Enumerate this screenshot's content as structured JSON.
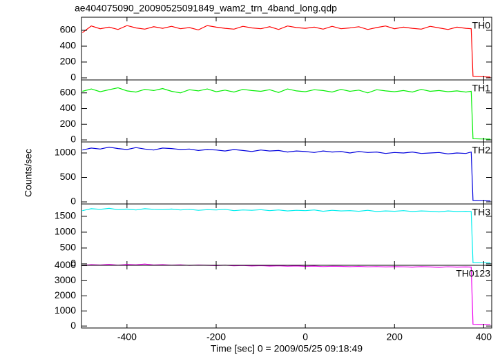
{
  "chart_data": [
    {
      "type": "line",
      "title": "ae404075090_20090525091849_wam2_trn_4band_long.qdp",
      "x": [
        -500,
        -480,
        -460,
        -440,
        -420,
        -400,
        -380,
        -360,
        -340,
        -320,
        -300,
        -280,
        -260,
        -240,
        -220,
        -200,
        -180,
        -160,
        -140,
        -120,
        -100,
        -80,
        -60,
        -40,
        -20,
        0,
        20,
        40,
        60,
        80,
        100,
        120,
        140,
        160,
        180,
        200,
        220,
        240,
        260,
        280,
        300,
        320,
        340,
        360,
        372,
        376,
        395,
        415
      ],
      "series": [
        {
          "name": "TH0",
          "color": "#ff0000",
          "values": [
            570,
            655,
            620,
            640,
            610,
            660,
            630,
            615,
            645,
            625,
            650,
            620,
            635,
            605,
            660,
            640,
            625,
            615,
            650,
            630,
            620,
            645,
            610,
            655,
            635,
            625,
            640,
            615,
            650,
            620,
            630,
            645,
            610,
            635,
            655,
            620,
            640,
            625,
            615,
            650,
            630,
            610,
            640,
            625,
            620,
            20,
            15,
            10
          ]
        }
      ],
      "xlim": [
        -502,
        418
      ],
      "xticks": [
        -400,
        -200,
        0,
        200,
        400
      ],
      "ylim": [
        -26,
        765
      ],
      "yticks": [
        0,
        200,
        400,
        600
      ]
    },
    {
      "type": "line",
      "x": [
        -500,
        -480,
        -460,
        -440,
        -420,
        -400,
        -380,
        -360,
        -340,
        -320,
        -300,
        -280,
        -260,
        -240,
        -220,
        -200,
        -180,
        -160,
        -140,
        -120,
        -100,
        -80,
        -60,
        -40,
        -20,
        0,
        20,
        40,
        60,
        80,
        100,
        120,
        140,
        160,
        180,
        200,
        220,
        240,
        260,
        280,
        300,
        320,
        340,
        360,
        372,
        376,
        395,
        415
      ],
      "series": [
        {
          "name": "TH1",
          "color": "#00ee00",
          "values": [
            620,
            650,
            615,
            640,
            665,
            625,
            610,
            645,
            630,
            655,
            620,
            600,
            640,
            625,
            650,
            615,
            635,
            610,
            645,
            630,
            620,
            640,
            605,
            650,
            625,
            615,
            640,
            630,
            610,
            645,
            620,
            635,
            600,
            640,
            625,
            615,
            630,
            610,
            645,
            620,
            630,
            615,
            625,
            610,
            620,
            15,
            12,
            10
          ]
        }
      ],
      "xlim": [
        -502,
        418
      ],
      "xticks": [
        -400,
        -200,
        0,
        200,
        400
      ],
      "ylim": [
        -26,
        765
      ],
      "yticks": [
        0,
        200,
        400,
        600
      ]
    },
    {
      "type": "line",
      "ylabel": "Counts/sec",
      "x": [
        -500,
        -480,
        -460,
        -440,
        -420,
        -400,
        -380,
        -360,
        -340,
        -320,
        -300,
        -280,
        -260,
        -240,
        -220,
        -200,
        -180,
        -160,
        -140,
        -120,
        -100,
        -80,
        -60,
        -40,
        -20,
        0,
        20,
        40,
        60,
        80,
        100,
        120,
        140,
        160,
        180,
        200,
        220,
        240,
        260,
        280,
        300,
        320,
        340,
        360,
        372,
        376,
        395,
        415
      ],
      "series": [
        {
          "name": "TH2",
          "color": "#0000dd",
          "values": [
            1060,
            1100,
            1080,
            1120,
            1090,
            1070,
            1110,
            1080,
            1060,
            1100,
            1090,
            1070,
            1080,
            1050,
            1070,
            1060,
            1040,
            1070,
            1050,
            1030,
            1060,
            1040,
            1050,
            1020,
            1040,
            1030,
            1010,
            1040,
            1020,
            1030,
            1000,
            1030,
            1010,
            1020,
            990,
            1010,
            1000,
            1020,
            990,
            1000,
            1010,
            980,
            1000,
            990,
            1020,
            30,
            25,
            20
          ]
        }
      ],
      "xlim": [
        -502,
        418
      ],
      "xticks": [
        -400,
        -200,
        0,
        200,
        400
      ],
      "ylim": [
        -42,
        1225
      ],
      "yticks": [
        0,
        500,
        1000
      ]
    },
    {
      "type": "line",
      "x": [
        -500,
        -480,
        -460,
        -440,
        -420,
        -400,
        -380,
        -360,
        -340,
        -320,
        -300,
        -280,
        -260,
        -240,
        -220,
        -200,
        -180,
        -160,
        -140,
        -120,
        -100,
        -80,
        -60,
        -40,
        -20,
        0,
        20,
        40,
        60,
        80,
        100,
        120,
        140,
        160,
        180,
        200,
        220,
        240,
        260,
        280,
        300,
        320,
        340,
        360,
        372,
        376,
        395,
        415
      ],
      "series": [
        {
          "name": "TH3",
          "color": "#00eeee",
          "values": [
            1680,
            1740,
            1720,
            1750,
            1710,
            1730,
            1700,
            1740,
            1720,
            1710,
            1730,
            1700,
            1720,
            1690,
            1710,
            1700,
            1720,
            1680,
            1700,
            1690,
            1710,
            1680,
            1700,
            1670,
            1690,
            1680,
            1700,
            1660,
            1690,
            1670,
            1680,
            1660,
            1690,
            1650,
            1670,
            1660,
            1680,
            1650,
            1670,
            1660,
            1640,
            1670,
            1650,
            1660,
            1650,
            40,
            35,
            30
          ]
        }
      ],
      "xlim": [
        -502,
        418
      ],
      "xticks": [
        -400,
        -200,
        0,
        200,
        400
      ],
      "ylim": [
        -45,
        1890
      ],
      "yticks": [
        0,
        500,
        1000,
        1500
      ]
    },
    {
      "type": "line",
      "xlabel": "Time [sec] 0 = 2009/05/25 09:18:49",
      "x": [
        -500,
        -480,
        -460,
        -440,
        -420,
        -400,
        -380,
        -360,
        -340,
        -320,
        -300,
        -280,
        -260,
        -240,
        -220,
        -200,
        -180,
        -160,
        -140,
        -120,
        -100,
        -80,
        -60,
        -40,
        -20,
        0,
        20,
        40,
        60,
        80,
        100,
        120,
        140,
        160,
        180,
        200,
        220,
        240,
        260,
        280,
        300,
        320,
        340,
        360,
        372,
        376,
        395,
        415
      ],
      "series": [
        {
          "name": "TH0123",
          "color": "#ee00ee",
          "values": [
            4000,
            4060,
            4040,
            4080,
            4030,
            4070,
            4050,
            4100,
            4040,
            4060,
            4030,
            4050,
            4010,
            4040,
            4020,
            4000,
            4030,
            3990,
            4010,
            3980,
            4000,
            3970,
            3990,
            3960,
            3980,
            3950,
            3970,
            3940,
            3960,
            3950,
            3930,
            3950,
            3920,
            3940,
            3910,
            3930,
            3920,
            3900,
            3930,
            3910,
            3890,
            3920,
            3900,
            3910,
            3900,
            110,
            100,
            90
          ]
        }
      ],
      "xlim": [
        -502,
        418
      ],
      "xticks": [
        -400,
        -200,
        0,
        200,
        400
      ],
      "ylim": [
        -130,
        4020
      ],
      "yticks": [
        0,
        1000,
        2000,
        3000,
        4000
      ]
    }
  ]
}
